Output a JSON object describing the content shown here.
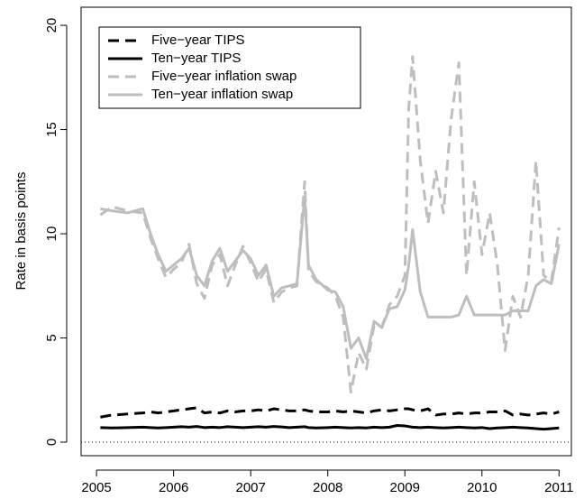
{
  "chart_data": {
    "type": "line",
    "y_label": "Rate in basis points",
    "x": [
      2005.05,
      2005.2,
      2005.4,
      2005.6,
      2005.7,
      2005.8,
      2005.9,
      2006.0,
      2006.1,
      2006.2,
      2006.3,
      2006.4,
      2006.5,
      2006.6,
      2006.7,
      2006.8,
      2006.9,
      2007.0,
      2007.1,
      2007.2,
      2007.3,
      2007.4,
      2007.5,
      2007.6,
      2007.7,
      2007.75,
      2007.85,
      2008.0,
      2008.1,
      2008.2,
      2008.3,
      2008.4,
      2008.5,
      2008.6,
      2008.7,
      2008.8,
      2008.9,
      2009.0,
      2009.05,
      2009.1,
      2009.2,
      2009.3,
      2009.4,
      2009.5,
      2009.6,
      2009.7,
      2009.8,
      2009.9,
      2010.0,
      2010.1,
      2010.2,
      2010.3,
      2010.4,
      2010.5,
      2010.6,
      2010.7,
      2010.8,
      2010.9,
      2011.0
    ],
    "series": [
      {
        "name": "Five−year TIPS",
        "color": "#000000",
        "line_style": "dashed",
        "values": [
          1.2,
          1.3,
          1.35,
          1.4,
          1.45,
          1.4,
          1.45,
          1.5,
          1.55,
          1.6,
          1.65,
          1.4,
          1.45,
          1.4,
          1.5,
          1.45,
          1.5,
          1.5,
          1.55,
          1.5,
          1.6,
          1.55,
          1.5,
          1.5,
          1.55,
          1.5,
          1.45,
          1.45,
          1.5,
          1.45,
          1.5,
          1.45,
          1.4,
          1.5,
          1.55,
          1.5,
          1.55,
          1.6,
          1.6,
          1.55,
          1.5,
          1.6,
          1.3,
          1.35,
          1.35,
          1.4,
          1.35,
          1.4,
          1.4,
          1.45,
          1.45,
          1.5,
          1.3,
          1.35,
          1.3,
          1.35,
          1.4,
          1.35,
          1.45
        ]
      },
      {
        "name": "Ten−year TIPS",
        "color": "#000000",
        "line_style": "solid",
        "values": [
          0.7,
          0.68,
          0.7,
          0.72,
          0.7,
          0.68,
          0.7,
          0.72,
          0.74,
          0.72,
          0.75,
          0.7,
          0.72,
          0.7,
          0.74,
          0.72,
          0.7,
          0.72,
          0.74,
          0.72,
          0.75,
          0.73,
          0.7,
          0.72,
          0.74,
          0.7,
          0.68,
          0.7,
          0.72,
          0.7,
          0.68,
          0.7,
          0.68,
          0.72,
          0.7,
          0.72,
          0.8,
          0.78,
          0.75,
          0.72,
          0.7,
          0.72,
          0.7,
          0.68,
          0.7,
          0.72,
          0.7,
          0.68,
          0.7,
          0.65,
          0.68,
          0.7,
          0.72,
          0.7,
          0.68,
          0.65,
          0.62,
          0.65,
          0.68
        ]
      },
      {
        "name": "Five−year inflation swap",
        "color": "#bebebe",
        "line_style": "dashed",
        "values": [
          10.9,
          11.3,
          11.1,
          11.0,
          9.8,
          8.8,
          7.9,
          8.3,
          8.6,
          9.5,
          7.6,
          6.9,
          8.5,
          9.0,
          7.5,
          8.5,
          9.4,
          8.6,
          7.7,
          8.3,
          6.7,
          7.2,
          7.4,
          7.5,
          12.5,
          8.2,
          7.7,
          7.4,
          7.0,
          6.0,
          2.4,
          4.3,
          3.5,
          5.6,
          5.5,
          6.6,
          7.0,
          8.0,
          16.0,
          18.5,
          13.5,
          10.5,
          13.0,
          11.0,
          15.5,
          18.2,
          8.0,
          12.5,
          9.0,
          11.0,
          8.5,
          4.4,
          7.0,
          6.0,
          8.0,
          13.5,
          8.0,
          7.7,
          10.3
        ]
      },
      {
        "name": "Ten−year inflation swap",
        "color": "#bebebe",
        "line_style": "solid",
        "values": [
          11.2,
          11.1,
          11.0,
          11.2,
          10.0,
          9.0,
          8.2,
          8.5,
          8.8,
          9.3,
          8.0,
          7.5,
          8.7,
          9.3,
          8.2,
          8.7,
          9.2,
          8.8,
          8.0,
          8.5,
          7.0,
          7.4,
          7.5,
          7.6,
          11.8,
          8.5,
          7.8,
          7.3,
          7.2,
          6.5,
          4.5,
          5.0,
          4.0,
          5.8,
          5.5,
          6.4,
          6.5,
          7.3,
          8.5,
          10.2,
          7.2,
          6.0,
          6.0,
          6.0,
          6.0,
          6.1,
          7.0,
          6.1,
          6.1,
          6.1,
          6.1,
          6.1,
          6.3,
          6.3,
          6.3,
          7.5,
          7.8,
          7.6,
          9.5
        ]
      }
    ],
    "xlim": [
      2004.8,
      2011.16
    ],
    "xticks": [
      2005,
      2006,
      2007,
      2008,
      2009,
      2010,
      2011
    ],
    "ylim": [
      -0.65,
      20.87
    ],
    "yticks": [
      0,
      5,
      10,
      15,
      20
    ],
    "hline": 0,
    "legend": "top-left"
  }
}
